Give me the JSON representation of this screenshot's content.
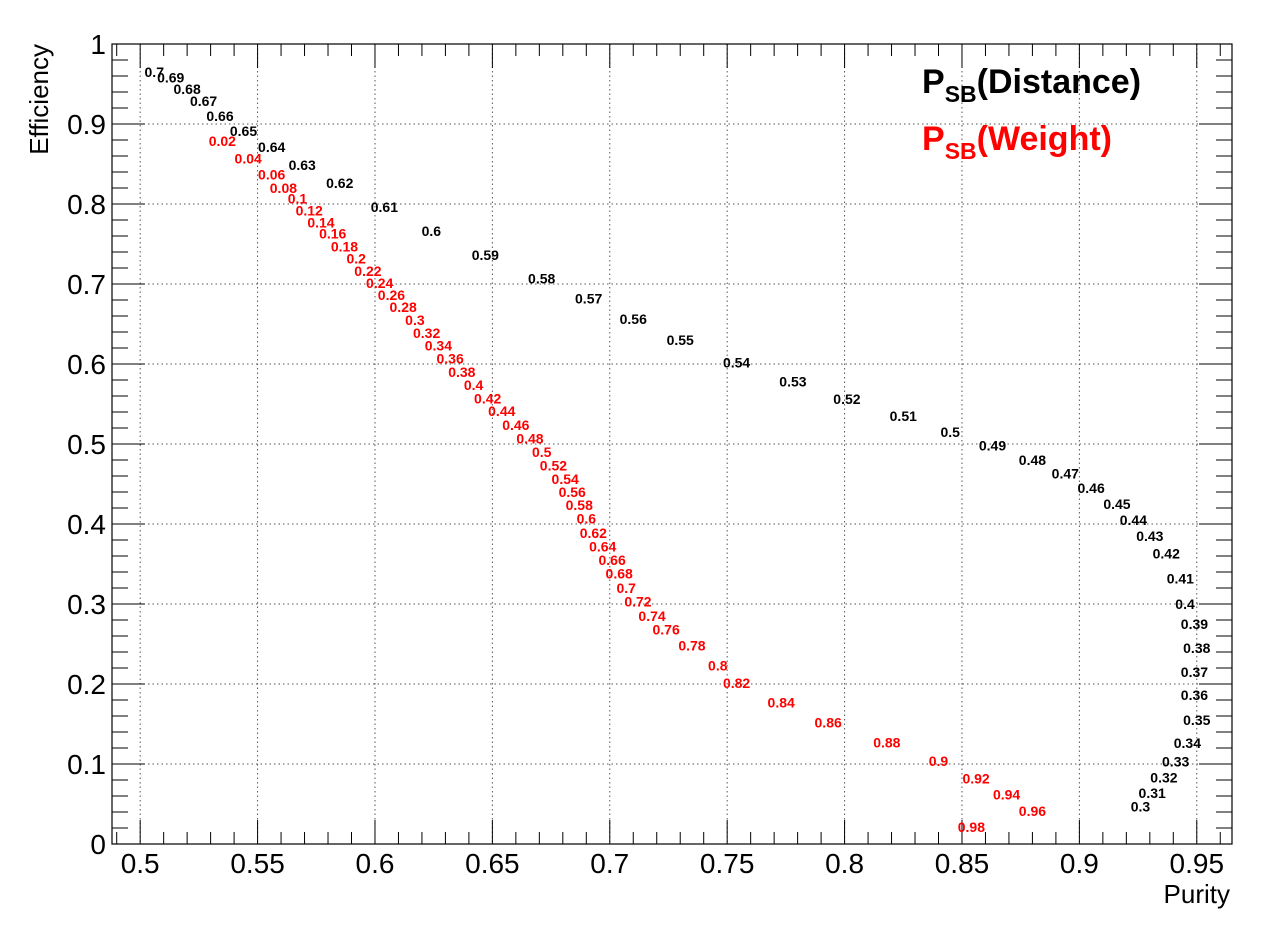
{
  "chart_data": {
    "type": "scatter",
    "xlabel": "Purity",
    "ylabel": "Efficiency",
    "xlim": [
      0.488,
      0.965
    ],
    "ylim": [
      0,
      1
    ],
    "grid": true,
    "x_ticks": [
      "0.5",
      "0.55",
      "0.6",
      "0.65",
      "0.7",
      "0.75",
      "0.8",
      "0.85",
      "0.9",
      "0.95"
    ],
    "y_ticks": [
      "0",
      "0.1",
      "0.2",
      "0.3",
      "0.4",
      "0.5",
      "0.6",
      "0.7",
      "0.8",
      "0.9",
      "1"
    ],
    "legend_position": "top-right",
    "legend": [
      {
        "main": "P",
        "sub": "SB",
        "rest": "(Distance)",
        "color": "#000000"
      },
      {
        "main": "P",
        "sub": "SB",
        "rest": "(Weight)",
        "color": "#ff0000"
      }
    ],
    "series": [
      {
        "color": "#000000",
        "points": [
          {
            "label": "0.7",
            "x": 0.506,
            "y": 0.965
          },
          {
            "label": "0.69",
            "x": 0.513,
            "y": 0.958
          },
          {
            "label": "0.68",
            "x": 0.52,
            "y": 0.944
          },
          {
            "label": "0.67",
            "x": 0.527,
            "y": 0.929
          },
          {
            "label": "0.66",
            "x": 0.534,
            "y": 0.91
          },
          {
            "label": "0.65",
            "x": 0.544,
            "y": 0.891
          },
          {
            "label": "0.64",
            "x": 0.556,
            "y": 0.871
          },
          {
            "label": "0.63",
            "x": 0.569,
            "y": 0.849
          },
          {
            "label": "0.62",
            "x": 0.585,
            "y": 0.826
          },
          {
            "label": "0.61",
            "x": 0.604,
            "y": 0.796
          },
          {
            "label": "0.6",
            "x": 0.624,
            "y": 0.766
          },
          {
            "label": "0.59",
            "x": 0.647,
            "y": 0.736
          },
          {
            "label": "0.58",
            "x": 0.671,
            "y": 0.707
          },
          {
            "label": "0.57",
            "x": 0.691,
            "y": 0.682
          },
          {
            "label": "0.56",
            "x": 0.71,
            "y": 0.656
          },
          {
            "label": "0.55",
            "x": 0.73,
            "y": 0.63
          },
          {
            "label": "0.54",
            "x": 0.754,
            "y": 0.602
          },
          {
            "label": "0.53",
            "x": 0.778,
            "y": 0.578
          },
          {
            "label": "0.52",
            "x": 0.801,
            "y": 0.556
          },
          {
            "label": "0.51",
            "x": 0.825,
            "y": 0.535
          },
          {
            "label": "0.5",
            "x": 0.845,
            "y": 0.515
          },
          {
            "label": "0.49",
            "x": 0.863,
            "y": 0.498
          },
          {
            "label": "0.48",
            "x": 0.88,
            "y": 0.48
          },
          {
            "label": "0.47",
            "x": 0.894,
            "y": 0.463
          },
          {
            "label": "0.46",
            "x": 0.905,
            "y": 0.445
          },
          {
            "label": "0.45",
            "x": 0.916,
            "y": 0.425
          },
          {
            "label": "0.44",
            "x": 0.923,
            "y": 0.405
          },
          {
            "label": "0.43",
            "x": 0.93,
            "y": 0.385
          },
          {
            "label": "0.42",
            "x": 0.937,
            "y": 0.363
          },
          {
            "label": "0.41",
            "x": 0.943,
            "y": 0.332
          },
          {
            "label": "0.4",
            "x": 0.945,
            "y": 0.3
          },
          {
            "label": "0.39",
            "x": 0.949,
            "y": 0.275
          },
          {
            "label": "0.38",
            "x": 0.95,
            "y": 0.245
          },
          {
            "label": "0.37",
            "x": 0.949,
            "y": 0.215
          },
          {
            "label": "0.36",
            "x": 0.949,
            "y": 0.186
          },
          {
            "label": "0.35",
            "x": 0.95,
            "y": 0.155
          },
          {
            "label": "0.34",
            "x": 0.946,
            "y": 0.126
          },
          {
            "label": "0.33",
            "x": 0.941,
            "y": 0.103
          },
          {
            "label": "0.32",
            "x": 0.936,
            "y": 0.083
          },
          {
            "label": "0.31",
            "x": 0.931,
            "y": 0.064
          },
          {
            "label": "0.3",
            "x": 0.926,
            "y": 0.047
          }
        ]
      },
      {
        "color": "#ff0000",
        "points": [
          {
            "label": "0.02",
            "x": 0.535,
            "y": 0.879
          },
          {
            "label": "0.04",
            "x": 0.546,
            "y": 0.857
          },
          {
            "label": "0.06",
            "x": 0.556,
            "y": 0.837
          },
          {
            "label": "0.08",
            "x": 0.561,
            "y": 0.82
          },
          {
            "label": "0.1",
            "x": 0.567,
            "y": 0.807
          },
          {
            "label": "0.12",
            "x": 0.572,
            "y": 0.792
          },
          {
            "label": "0.14",
            "x": 0.577,
            "y": 0.777
          },
          {
            "label": "0.16",
            "x": 0.582,
            "y": 0.763
          },
          {
            "label": "0.18",
            "x": 0.587,
            "y": 0.747
          },
          {
            "label": "0.2",
            "x": 0.592,
            "y": 0.732
          },
          {
            "label": "0.22",
            "x": 0.597,
            "y": 0.716
          },
          {
            "label": "0.24",
            "x": 0.602,
            "y": 0.701
          },
          {
            "label": "0.26",
            "x": 0.607,
            "y": 0.686
          },
          {
            "label": "0.28",
            "x": 0.612,
            "y": 0.671
          },
          {
            "label": "0.3",
            "x": 0.617,
            "y": 0.655
          },
          {
            "label": "0.32",
            "x": 0.622,
            "y": 0.639
          },
          {
            "label": "0.34",
            "x": 0.627,
            "y": 0.623
          },
          {
            "label": "0.36",
            "x": 0.632,
            "y": 0.607
          },
          {
            "label": "0.38",
            "x": 0.637,
            "y": 0.59
          },
          {
            "label": "0.4",
            "x": 0.642,
            "y": 0.574
          },
          {
            "label": "0.42",
            "x": 0.648,
            "y": 0.557
          },
          {
            "label": "0.44",
            "x": 0.654,
            "y": 0.541
          },
          {
            "label": "0.46",
            "x": 0.66,
            "y": 0.524
          },
          {
            "label": "0.48",
            "x": 0.666,
            "y": 0.507
          },
          {
            "label": "0.5",
            "x": 0.671,
            "y": 0.49
          },
          {
            "label": "0.52",
            "x": 0.676,
            "y": 0.473
          },
          {
            "label": "0.54",
            "x": 0.681,
            "y": 0.456
          },
          {
            "label": "0.56",
            "x": 0.684,
            "y": 0.44
          },
          {
            "label": "0.58",
            "x": 0.687,
            "y": 0.424
          },
          {
            "label": "0.6",
            "x": 0.69,
            "y": 0.407
          },
          {
            "label": "0.62",
            "x": 0.693,
            "y": 0.389
          },
          {
            "label": "0.64",
            "x": 0.697,
            "y": 0.372
          },
          {
            "label": "0.66",
            "x": 0.701,
            "y": 0.355
          },
          {
            "label": "0.68",
            "x": 0.704,
            "y": 0.338
          },
          {
            "label": "0.7",
            "x": 0.707,
            "y": 0.32
          },
          {
            "label": "0.72",
            "x": 0.712,
            "y": 0.303
          },
          {
            "label": "0.74",
            "x": 0.718,
            "y": 0.285
          },
          {
            "label": "0.76",
            "x": 0.724,
            "y": 0.268
          },
          {
            "label": "0.78",
            "x": 0.735,
            "y": 0.248
          },
          {
            "label": "0.8",
            "x": 0.746,
            "y": 0.223
          },
          {
            "label": "0.82",
            "x": 0.754,
            "y": 0.201
          },
          {
            "label": "0.84",
            "x": 0.773,
            "y": 0.177
          },
          {
            "label": "0.86",
            "x": 0.793,
            "y": 0.152
          },
          {
            "label": "0.88",
            "x": 0.818,
            "y": 0.127
          },
          {
            "label": "0.9",
            "x": 0.84,
            "y": 0.104
          },
          {
            "label": "0.92",
            "x": 0.856,
            "y": 0.082
          },
          {
            "label": "0.94",
            "x": 0.869,
            "y": 0.062
          },
          {
            "label": "0.96",
            "x": 0.88,
            "y": 0.041
          },
          {
            "label": "0.98",
            "x": 0.854,
            "y": 0.021
          }
        ]
      }
    ]
  }
}
